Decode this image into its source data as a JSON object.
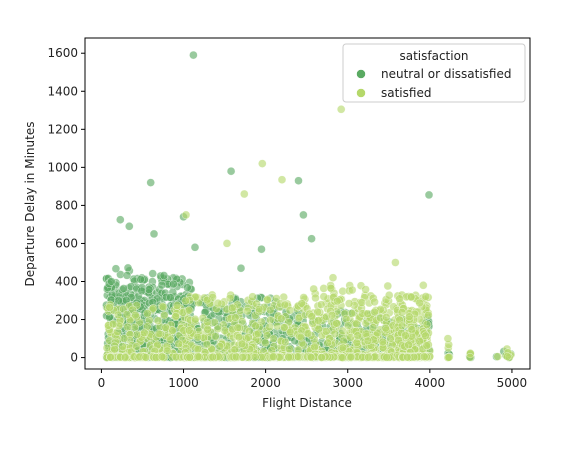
{
  "chart_data": {
    "type": "scatter",
    "xlabel": "Flight Distance",
    "ylabel": "Departure Delay in Minutes",
    "xlim": [
      -200,
      5220
    ],
    "ylim": [
      -60,
      1680
    ],
    "xticks": [
      0,
      1000,
      2000,
      3000,
      4000,
      5000
    ],
    "yticks": [
      0,
      200,
      400,
      600,
      800,
      1000,
      1200,
      1400,
      1600
    ],
    "grid": false,
    "legend": {
      "title": "satisfaction",
      "placement": "top-right"
    },
    "series": [
      {
        "name": "neutral or dissatisfied",
        "color": "#5aaa62",
        "outliers": [
          [
            1120,
            1590
          ],
          [
            600,
            920
          ],
          [
            1580,
            980
          ],
          [
            2400,
            930
          ],
          [
            3990,
            855
          ],
          [
            2460,
            750
          ],
          [
            1000,
            740
          ],
          [
            230,
            725
          ],
          [
            340,
            690
          ],
          [
            2560,
            625
          ],
          [
            640,
            650
          ],
          [
            1950,
            570
          ],
          [
            1140,
            580
          ],
          [
            1700,
            470
          ]
        ],
        "bands": [
          {
            "x": [
              60,
              1100
            ],
            "y": [
              0,
              420
            ],
            "n": 520
          },
          {
            "x": [
              60,
              900
            ],
            "y": [
              250,
              480
            ],
            "n": 60
          },
          {
            "x": [
              900,
              2200
            ],
            "y": [
              0,
              320
            ],
            "n": 330
          },
          {
            "x": [
              2200,
              3300
            ],
            "y": [
              0,
              250
            ],
            "n": 190
          },
          {
            "x": [
              3300,
              4000
            ],
            "y": [
              0,
              220
            ],
            "n": 110
          },
          {
            "x": [
              4220,
              4240
            ],
            "y": [
              0,
              40
            ],
            "n": 4
          },
          {
            "x": [
              4480,
              4500
            ],
            "y": [
              0,
              30
            ],
            "n": 3
          },
          {
            "x": [
              4800,
              4990
            ],
            "y": [
              0,
              50
            ],
            "n": 5
          }
        ]
      },
      {
        "name": "satisfied",
        "color": "#b5d86a",
        "outliers": [
          [
            2920,
            1305
          ],
          [
            1960,
            1020
          ],
          [
            2200,
            935
          ],
          [
            1740,
            860
          ],
          [
            1030,
            750
          ],
          [
            1530,
            600
          ],
          [
            3580,
            500
          ],
          [
            2820,
            420
          ],
          [
            3920,
            380
          ],
          [
            4220,
            100
          ]
        ],
        "bands": [
          {
            "x": [
              60,
              1100
            ],
            "y": [
              0,
              280
            ],
            "n": 180
          },
          {
            "x": [
              1000,
              2500
            ],
            "y": [
              0,
              330
            ],
            "n": 260
          },
          {
            "x": [
              2500,
              3600
            ],
            "y": [
              0,
              380
            ],
            "n": 300
          },
          {
            "x": [
              3600,
              4000
            ],
            "y": [
              0,
              330
            ],
            "n": 170
          },
          {
            "x": [
              4220,
              4240
            ],
            "y": [
              0,
              110
            ],
            "n": 5
          },
          {
            "x": [
              4480,
              4500
            ],
            "y": [
              0,
              40
            ],
            "n": 3
          },
          {
            "x": [
              4800,
              5000
            ],
            "y": [
              0,
              80
            ],
            "n": 6
          }
        ]
      }
    ]
  }
}
